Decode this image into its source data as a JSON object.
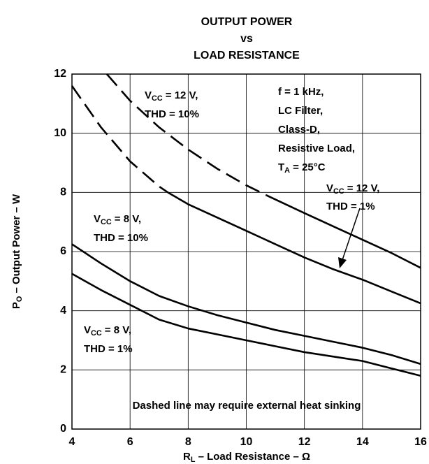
{
  "chart_data": {
    "type": "line",
    "title": [
      "OUTPUT POWER",
      "vs",
      "LOAD RESISTANCE"
    ],
    "xlabel": [
      "R",
      "L",
      " – Load Resistance – Ω"
    ],
    "ylabel": [
      "P",
      "O",
      " – Output Power – W"
    ],
    "xlim": [
      4,
      16
    ],
    "ylim": [
      0,
      12
    ],
    "xticks": [
      4,
      6,
      8,
      10,
      12,
      14,
      16
    ],
    "yticks": [
      0,
      2,
      4,
      6,
      8,
      10,
      12
    ],
    "grid": true,
    "series": [
      {
        "color": "#000000",
        "dashed": true,
        "x": [
          5.2,
          6,
          7,
          8,
          9,
          10,
          10.7
        ],
        "values": [
          12,
          11.1,
          10.2,
          9.45,
          8.8,
          8.24,
          7.9
        ]
      },
      {
        "color": "#000000",
        "dashed": false,
        "x": [
          10.7,
          12,
          13,
          14,
          15,
          16
        ],
        "values": [
          7.9,
          7.3,
          6.85,
          6.4,
          5.95,
          5.45
        ]
      },
      {
        "color": "#000000",
        "dashed": true,
        "x": [
          4,
          5,
          6,
          7,
          7.3
        ],
        "values": [
          11.6,
          10.2,
          9.05,
          8.2,
          8.0
        ]
      },
      {
        "color": "#000000",
        "dashed": false,
        "x": [
          7.3,
          8,
          9,
          10,
          11,
          12,
          13,
          14,
          15,
          16
        ],
        "values": [
          8.0,
          7.6,
          7.15,
          6.7,
          6.25,
          5.8,
          5.4,
          5.05,
          4.65,
          4.25
        ]
      },
      {
        "color": "#000000",
        "dashed": false,
        "x": [
          4,
          5,
          6,
          7,
          8,
          9,
          10,
          11,
          12,
          13,
          14,
          15,
          16
        ],
        "values": [
          6.25,
          5.6,
          5.0,
          4.5,
          4.15,
          3.85,
          3.6,
          3.35,
          3.15,
          2.95,
          2.75,
          2.5,
          2.2
        ]
      },
      {
        "color": "#000000",
        "dashed": false,
        "x": [
          4,
          5,
          6,
          7,
          8,
          9,
          10,
          11,
          12,
          13,
          14,
          15,
          16
        ],
        "values": [
          5.25,
          4.7,
          4.2,
          3.7,
          3.4,
          3.2,
          3.0,
          2.8,
          2.6,
          2.45,
          2.3,
          2.05,
          1.8
        ]
      }
    ],
    "annotations": [
      {
        "lines": [
          [
            "V",
            "CC",
            " = 12 V,"
          ],
          [
            "THD = 10%"
          ]
        ]
      },
      {
        "lines": [
          [
            "f = 1 kHz,"
          ],
          [
            "LC Filter,"
          ],
          [
            "Class-D,"
          ],
          [
            "Resistive Load,"
          ],
          [
            "T",
            "A",
            " = 25°C"
          ]
        ]
      },
      {
        "lines": [
          [
            "V",
            "CC",
            " = 12 V,"
          ],
          [
            "THD = 1%"
          ]
        ]
      },
      {
        "lines": [
          [
            "V",
            "CC",
            " = 8 V,"
          ],
          [
            "THD = 10%"
          ]
        ]
      },
      {
        "lines": [
          [
            "V",
            "CC",
            " = 8 V,"
          ],
          [
            "THD = 1%"
          ]
        ]
      },
      {
        "lines": [
          [
            "Dashed line may require external heat sinking"
          ]
        ]
      }
    ]
  }
}
